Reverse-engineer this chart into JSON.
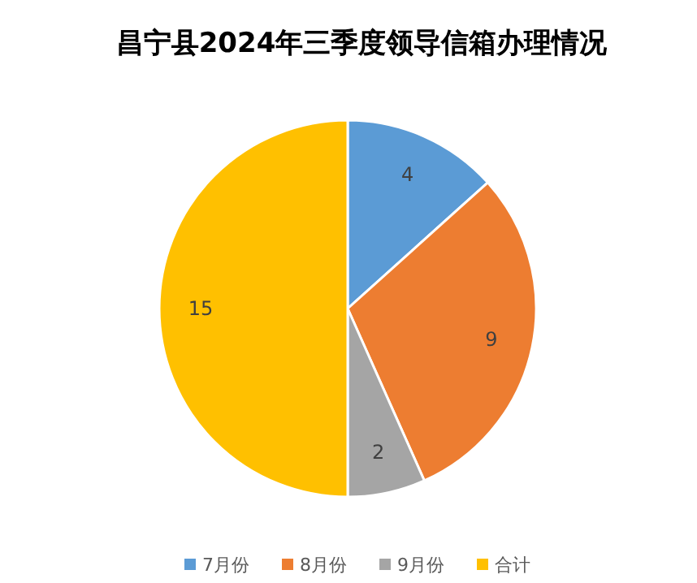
{
  "chart_data": {
    "type": "pie",
    "title": "昌宁县2024年三季度领导信箱办理情况",
    "categories": [
      "7月份",
      "8月份",
      "9月份",
      "合计"
    ],
    "values": [
      4,
      9,
      2,
      15
    ],
    "colors": [
      "#5b9bd5",
      "#ed7d31",
      "#a5a5a5",
      "#ffc000"
    ],
    "data_labels": true,
    "legend": "bottom"
  }
}
